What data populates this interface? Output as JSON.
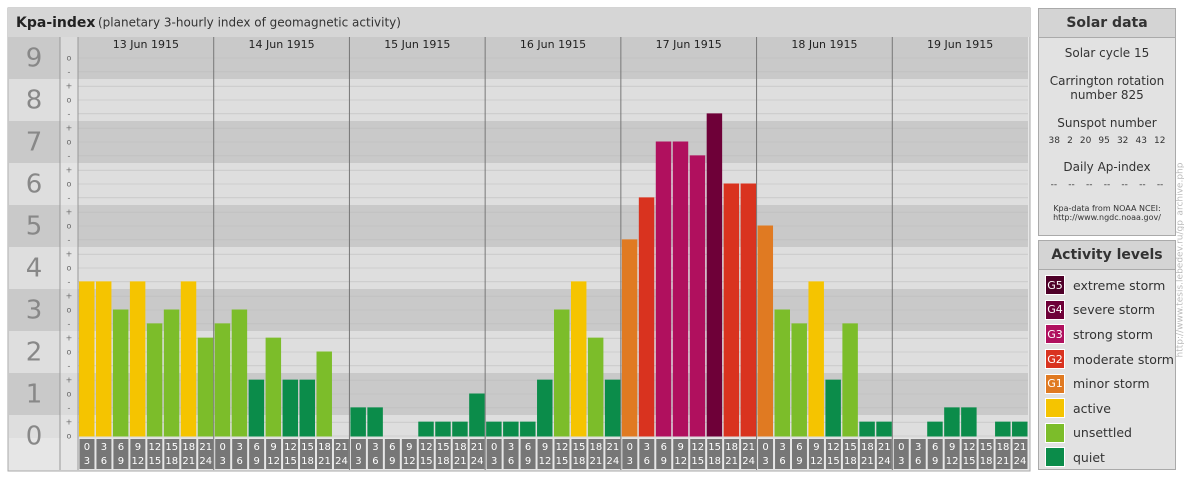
{
  "chart_data": {
    "type": "bar",
    "title": "Kpa-index",
    "subtitle": "(planetary 3-hourly index of geomagnetic activity)",
    "days": [
      "13 Jun 1915",
      "14 Jun 1915",
      "15 Jun 1915",
      "16 Jun 1915",
      "17 Jun 1915",
      "18 Jun 1915",
      "19 Jun 1915"
    ],
    "hours": [
      [
        0,
        3
      ],
      [
        3,
        6
      ],
      [
        6,
        9
      ],
      [
        9,
        12
      ],
      [
        12,
        15
      ],
      [
        15,
        18
      ],
      [
        18,
        21
      ],
      [
        21,
        24
      ]
    ],
    "values": [
      3.67,
      3.67,
      3,
      3.67,
      2.67,
      3,
      3.67,
      2.33,
      2.67,
      3,
      1.33,
      2.33,
      1.33,
      1.33,
      2,
      0,
      0.67,
      0.67,
      0,
      0,
      0.33,
      0.33,
      0.33,
      1,
      0.33,
      0.33,
      0.33,
      1.33,
      3,
      3.67,
      2.33,
      1.33,
      4.67,
      5.67,
      7,
      7,
      6.67,
      7.67,
      6,
      6,
      5,
      3,
      2.67,
      3.67,
      1.33,
      2.67,
      0.33,
      0.33,
      0,
      0,
      0.33,
      0.67,
      0.67,
      0,
      0.33,
      0.33
    ],
    "colors": [
      "#f5c400",
      "#f5c400",
      "#7cbd2a",
      "#f5c400",
      "#7cbd2a",
      "#7cbd2a",
      "#f5c400",
      "#7cbd2a",
      "#7cbd2a",
      "#7cbd2a",
      "#0b8c4a",
      "#7cbd2a",
      "#0b8c4a",
      "#0b8c4a",
      "#7cbd2a",
      "#0b8c4a",
      "#0b8c4a",
      "#0b8c4a",
      "#0b8c4a",
      "#0b8c4a",
      "#0b8c4a",
      "#0b8c4a",
      "#0b8c4a",
      "#0b8c4a",
      "#0b8c4a",
      "#0b8c4a",
      "#0b8c4a",
      "#0b8c4a",
      "#7cbd2a",
      "#f5c400",
      "#7cbd2a",
      "#0b8c4a",
      "#e07a22",
      "#d9331f",
      "#b0105e",
      "#b0105e",
      "#b0105e",
      "#6e0038",
      "#d9331f",
      "#d9331f",
      "#e07a22",
      "#7cbd2a",
      "#7cbd2a",
      "#f5c400",
      "#0b8c4a",
      "#7cbd2a",
      "#0b8c4a",
      "#0b8c4a",
      "#0b8c4a",
      "#0b8c4a",
      "#0b8c4a",
      "#0b8c4a",
      "#0b8c4a",
      "#0b8c4a",
      "#0b8c4a",
      "#0b8c4a"
    ],
    "ylim": [
      0,
      9.5
    ],
    "yticks": [
      0,
      1,
      2,
      3,
      4,
      5,
      6,
      7,
      8,
      9
    ],
    "minor_ticks": [
      {
        "value": 9,
        "label": "o"
      },
      {
        "value": 8.67,
        "label": "-"
      },
      {
        "value": 8.33,
        "label": "+"
      },
      {
        "value": 8,
        "label": "o"
      },
      {
        "value": 7.67,
        "label": "-"
      },
      {
        "value": 7.33,
        "label": "+"
      },
      {
        "value": 7,
        "label": "o"
      },
      {
        "value": 6.67,
        "label": "-"
      },
      {
        "value": 6.33,
        "label": "+"
      },
      {
        "value": 6,
        "label": "o"
      },
      {
        "value": 5.67,
        "label": "-"
      },
      {
        "value": 5.33,
        "label": "+"
      },
      {
        "value": 5,
        "label": "o"
      },
      {
        "value": 4.67,
        "label": "-"
      },
      {
        "value": 4.33,
        "label": "+"
      },
      {
        "value": 4,
        "label": "o"
      },
      {
        "value": 3.67,
        "label": "-"
      },
      {
        "value": 3.33,
        "label": "+"
      },
      {
        "value": 3,
        "label": "o"
      },
      {
        "value": 2.67,
        "label": "-"
      },
      {
        "value": 2.33,
        "label": "+"
      },
      {
        "value": 2,
        "label": "o"
      },
      {
        "value": 1.67,
        "label": "-"
      },
      {
        "value": 1.33,
        "label": "+"
      },
      {
        "value": 1,
        "label": "o"
      },
      {
        "value": 0.67,
        "label": "-"
      },
      {
        "value": 0.33,
        "label": "+"
      },
      {
        "value": 0,
        "label": "o"
      }
    ]
  },
  "solar_data": {
    "title": "Solar data",
    "cycle": "Solar cycle 15",
    "rotation": "Carrington rotation number 825",
    "sunspot_title": "Sunspot number",
    "sunspots": [
      38,
      2,
      20,
      95,
      32,
      43,
      12
    ],
    "ap_title": "Daily Ap-index",
    "ap": [
      "--",
      "--",
      "--",
      "--",
      "--",
      "--",
      "--"
    ],
    "source": "Kpa-data from NOAA NCEI:",
    "url": "http://www.ngdc.noaa.gov/"
  },
  "activity_levels": {
    "title": "Activity levels",
    "items": [
      {
        "badge": "G5",
        "label": "extreme storm",
        "color": "#4e0028"
      },
      {
        "badge": "G4",
        "label": "severe storm",
        "color": "#6e0038"
      },
      {
        "badge": "G3",
        "label": "strong storm",
        "color": "#b0105e"
      },
      {
        "badge": "G2",
        "label": "moderate storm",
        "color": "#d9331f"
      },
      {
        "badge": "G1",
        "label": "minor storm",
        "color": "#e07a22"
      },
      {
        "label": "active",
        "color": "#f5c400"
      },
      {
        "label": "unsettled",
        "color": "#7cbd2a"
      },
      {
        "label": "quiet",
        "color": "#0b8c4a"
      }
    ]
  },
  "watermark": "http://www.tesis.lebedev.ru/gp_archive.php"
}
